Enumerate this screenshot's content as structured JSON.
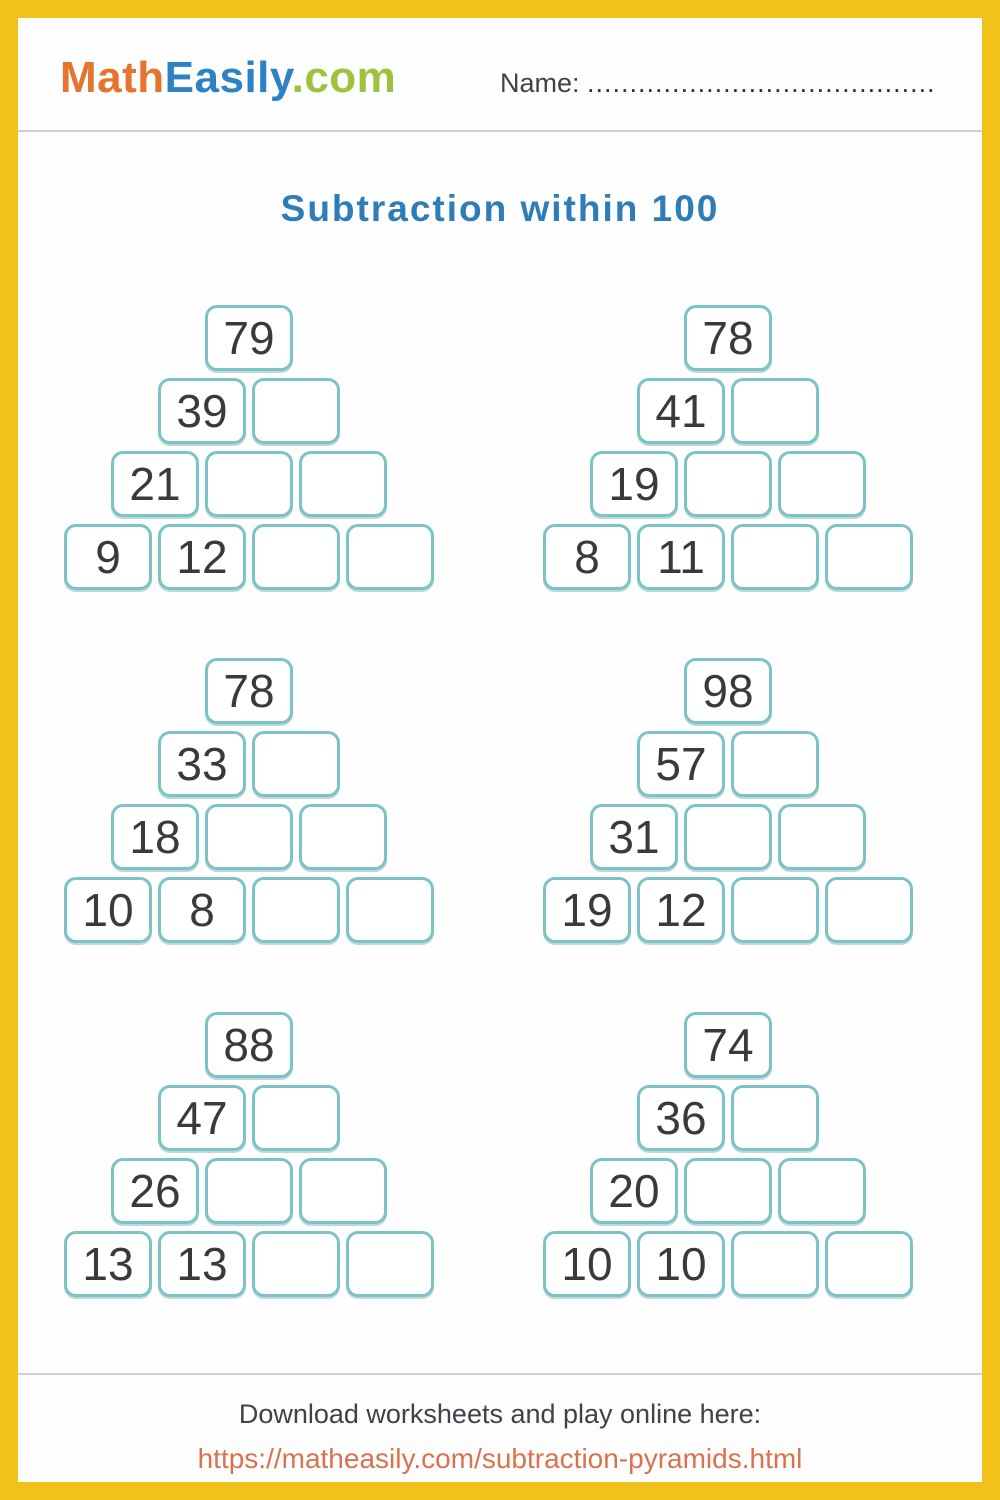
{
  "header": {
    "logo": {
      "math": "Math",
      "easily": "Easily",
      "com": ".com"
    },
    "name_label": "Name:",
    "name_dots": ".........................................."
  },
  "title": {
    "text": "Subtraction within 100"
  },
  "pyramids": [
    {
      "rows": [
        [
          "79"
        ],
        [
          "39",
          ""
        ],
        [
          "21",
          "",
          ""
        ],
        [
          "9",
          "12",
          "",
          ""
        ]
      ]
    },
    {
      "rows": [
        [
          "78"
        ],
        [
          "41",
          ""
        ],
        [
          "19",
          "",
          ""
        ],
        [
          "8",
          "11",
          "",
          ""
        ]
      ]
    },
    {
      "rows": [
        [
          "78"
        ],
        [
          "33",
          ""
        ],
        [
          "18",
          "",
          ""
        ],
        [
          "10",
          "8",
          "",
          ""
        ]
      ]
    },
    {
      "rows": [
        [
          "98"
        ],
        [
          "57",
          ""
        ],
        [
          "31",
          "",
          ""
        ],
        [
          "19",
          "12",
          "",
          ""
        ]
      ]
    },
    {
      "rows": [
        [
          "88"
        ],
        [
          "47",
          ""
        ],
        [
          "26",
          "",
          ""
        ],
        [
          "13",
          "13",
          "",
          ""
        ]
      ]
    },
    {
      "rows": [
        [
          "74"
        ],
        [
          "36",
          ""
        ],
        [
          "20",
          "",
          ""
        ],
        [
          "10",
          "10",
          "",
          ""
        ]
      ]
    }
  ],
  "footer": {
    "line1": "Download worksheets and play online here:",
    "link": "https://matheasily.com/subtraction-pyramids.html"
  },
  "colors": {
    "page_border": "#F2C21C",
    "box_border": "#7CC3C7",
    "title_blue": "#2E7CB8",
    "logo_orange": "#E4742E",
    "logo_blue": "#2E82C4",
    "logo_green": "#9EC23D",
    "link_coral": "#D9734F",
    "number_text": "#3A3A3A"
  }
}
